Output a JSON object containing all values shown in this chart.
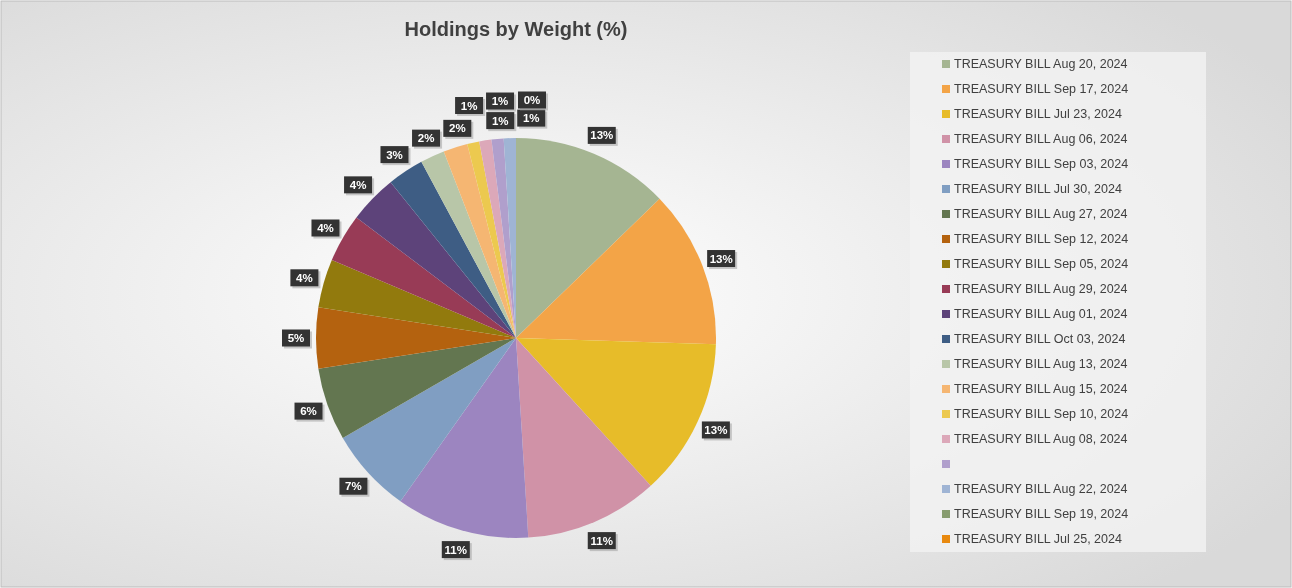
{
  "chart_data": {
    "type": "pie",
    "title": "Holdings by Weight (%)",
    "categories": [
      "TREASURY BILL Aug 20, 2024",
      "TREASURY BILL Sep 17, 2024",
      "TREASURY BILL Jul 23, 2024",
      "TREASURY BILL Aug 06, 2024",
      "TREASURY BILL Sep 03, 2024",
      "TREASURY BILL Jul 30, 2024",
      "TREASURY BILL Aug 27, 2024",
      "TREASURY BILL Sep 12, 2024",
      "TREASURY BILL Sep 05, 2024",
      "TREASURY BILL Aug 29, 2024",
      "TREASURY BILL Aug 01, 2024",
      "TREASURY BILL Oct 03, 2024",
      "TREASURY BILL Aug 13, 2024",
      "TREASURY BILL Aug 15, 2024",
      "TREASURY BILL Sep 10, 2024",
      "TREASURY BILL Aug 08, 2024",
      null,
      "TREASURY BILL Aug 22, 2024",
      "TREASURY BILL Sep 19, 2024",
      "TREASURY BILL Jul 25, 2024"
    ],
    "values": [
      13,
      13,
      13,
      11,
      11,
      7,
      6,
      5,
      4,
      4,
      4,
      3,
      2,
      2,
      1,
      1,
      1,
      1,
      0,
      0
    ],
    "colors": [
      "#a5b592",
      "#f3a447",
      "#e7bc29",
      "#d092a7",
      "#9c85c0",
      "#809ec2",
      "#637650",
      "#b4620f",
      "#927a0d",
      "#983b56",
      "#5d437a",
      "#3e5d84",
      "#b8c6a8",
      "#f5b672",
      "#ecc94f",
      "#dca8b9",
      "#b09fcc",
      "#9fb4d4",
      "#879c6f",
      "#e8890f"
    ],
    "value_labels": [
      "13%",
      "13%",
      "13%",
      "11%",
      "11%",
      "7%",
      "6%",
      "5%",
      "4%",
      "4%",
      "4%",
      "3%",
      "2%",
      "2%",
      "1%",
      "1%",
      "1%",
      "1%",
      null,
      "0%"
    ],
    "legend": "right"
  }
}
